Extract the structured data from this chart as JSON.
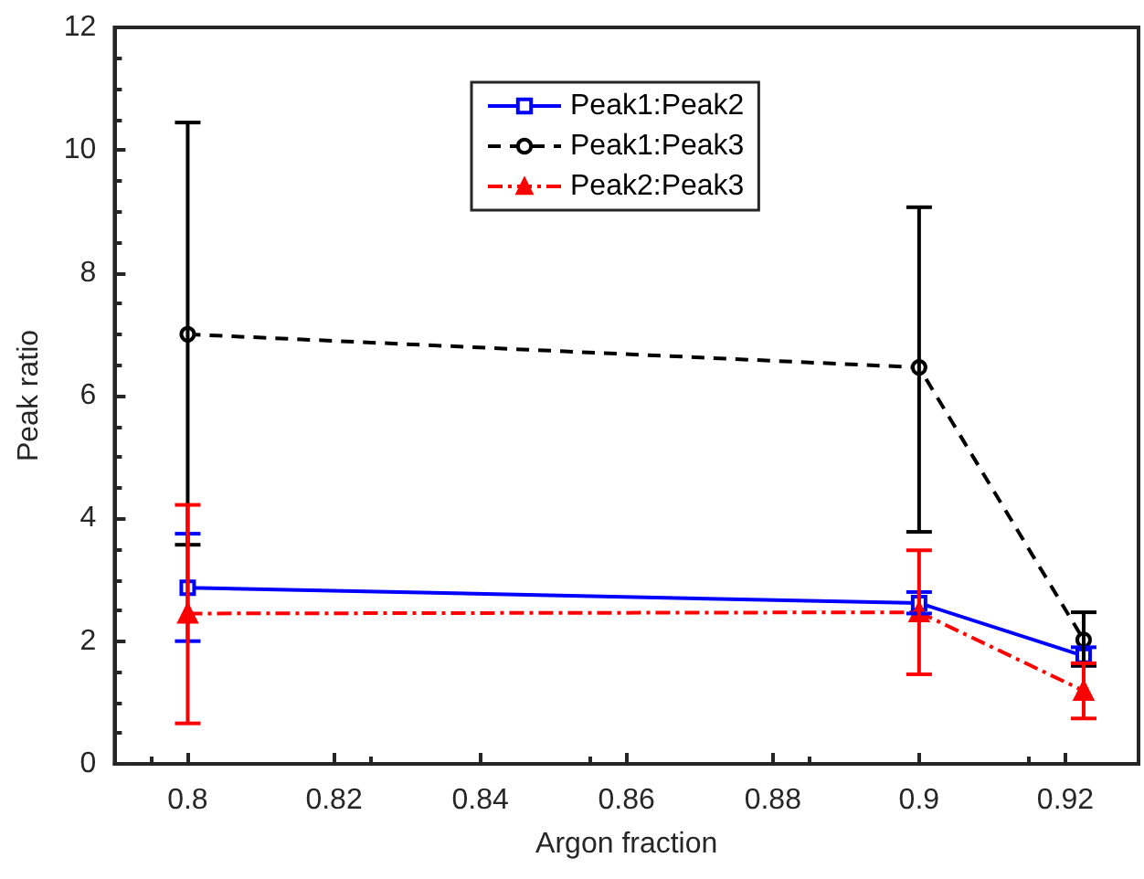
{
  "chart_data": {
    "type": "line",
    "xlabel": "Argon fraction",
    "ylabel": "Peak ratio",
    "xlim": [
      0.79,
      0.93
    ],
    "xticks": [
      0.8,
      0.82,
      0.84,
      0.86,
      0.88,
      0.9,
      0.92
    ],
    "ylim": [
      0,
      12
    ],
    "yticks": [
      0,
      2,
      4,
      6,
      8,
      10,
      12
    ],
    "x": [
      0.8,
      0.9,
      0.9225
    ],
    "grid": false,
    "legend": "top",
    "series": [
      {
        "name": "Peak1:Peak2",
        "color": "#0000ff",
        "marker": "square",
        "line_style": "solid",
        "values": [
          2.87,
          2.62,
          1.76
        ],
        "errors": [
          [
            2.0,
            3.75
          ],
          [
            2.45,
            2.8
          ],
          [
            1.6,
            1.9
          ]
        ]
      },
      {
        "name": "Peak1:Peak3",
        "color": "#000000",
        "marker": "circle",
        "line_style": "dashed",
        "values": [
          7.0,
          6.46,
          2.02
        ],
        "errors": [
          [
            3.57,
            10.45
          ],
          [
            3.78,
            9.07
          ],
          [
            1.6,
            2.47
          ]
        ]
      },
      {
        "name": "Peak2:Peak3",
        "color": "#ff0000",
        "marker": "triangle",
        "line_style": "dashdot",
        "values": [
          2.45,
          2.47,
          1.19
        ],
        "errors": [
          [
            0.66,
            4.22
          ],
          [
            1.46,
            3.48
          ],
          [
            0.74,
            1.64
          ]
        ]
      }
    ]
  }
}
